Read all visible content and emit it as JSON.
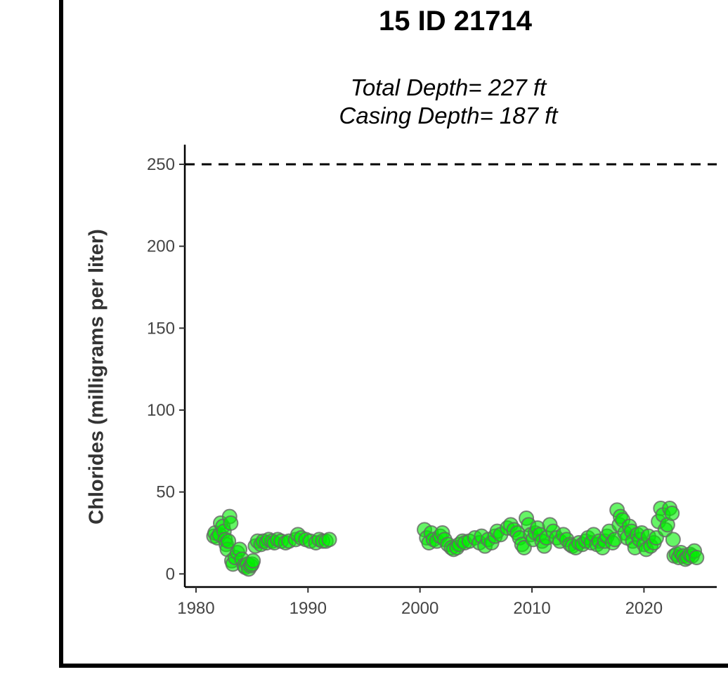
{
  "chart_data": {
    "type": "scatter",
    "title": "15 ID 21714",
    "subtitle_lines": [
      "Total Depth= 227 ft",
      "Casing Depth= 187 ft"
    ],
    "xlabel": "",
    "ylabel": "Chlorides (milligrams per liter)",
    "xlim": [
      1979,
      2026.5
    ],
    "ylim": [
      -8,
      262
    ],
    "x_ticks": [
      1980,
      1990,
      2000,
      2010,
      2020
    ],
    "y_ticks": [
      0,
      50,
      100,
      150,
      200,
      250
    ],
    "reference_line": {
      "y": 250,
      "style": "dashed",
      "color": "#000000"
    },
    "grid": false,
    "legend": "none",
    "point_color": "#00ee00",
    "point_edge_color": "#666666",
    "points": [
      [
        1981.6,
        23
      ],
      [
        1981.7,
        25
      ],
      [
        1981.9,
        22
      ],
      [
        1982.1,
        24
      ],
      [
        1982.2,
        31
      ],
      [
        1982.4,
        29
      ],
      [
        1982.5,
        26
      ],
      [
        1982.6,
        21
      ],
      [
        1982.7,
        18
      ],
      [
        1982.8,
        15
      ],
      [
        1982.9,
        20
      ],
      [
        1983.0,
        35
      ],
      [
        1983.1,
        31
      ],
      [
        1983.2,
        8
      ],
      [
        1983.3,
        6
      ],
      [
        1983.5,
        10
      ],
      [
        1983.7,
        13
      ],
      [
        1983.9,
        15
      ],
      [
        1984.1,
        9
      ],
      [
        1984.3,
        5
      ],
      [
        1984.4,
        4
      ],
      [
        1984.6,
        6
      ],
      [
        1984.7,
        3
      ],
      [
        1984.9,
        5
      ],
      [
        1985.0,
        6
      ],
      [
        1985.1,
        8
      ],
      [
        1985.3,
        17
      ],
      [
        1985.5,
        20
      ],
      [
        1985.8,
        18
      ],
      [
        1986.0,
        20
      ],
      [
        1986.3,
        19
      ],
      [
        1986.5,
        21
      ],
      [
        1986.8,
        20
      ],
      [
        1987.0,
        19
      ],
      [
        1987.3,
        21
      ],
      [
        1987.6,
        20
      ],
      [
        1988.0,
        19
      ],
      [
        1988.3,
        20
      ],
      [
        1988.9,
        21
      ],
      [
        1989.1,
        24
      ],
      [
        1989.4,
        22
      ],
      [
        1989.8,
        21
      ],
      [
        1990.2,
        20
      ],
      [
        1990.7,
        19
      ],
      [
        1991.0,
        21
      ],
      [
        1991.3,
        20
      ],
      [
        1991.6,
        20
      ],
      [
        1991.9,
        21
      ],
      [
        2000.4,
        27
      ],
      [
        2000.6,
        22
      ],
      [
        2000.8,
        19
      ],
      [
        2001.0,
        25
      ],
      [
        2001.2,
        21
      ],
      [
        2001.5,
        20
      ],
      [
        2001.8,
        23
      ],
      [
        2002.0,
        25
      ],
      [
        2002.2,
        21
      ],
      [
        2002.5,
        18
      ],
      [
        2002.8,
        16
      ],
      [
        2003.0,
        15
      ],
      [
        2003.3,
        16
      ],
      [
        2003.5,
        18
      ],
      [
        2003.8,
        20
      ],
      [
        2004.0,
        19
      ],
      [
        2004.4,
        20
      ],
      [
        2004.9,
        22
      ],
      [
        2005.3,
        19
      ],
      [
        2005.5,
        23
      ],
      [
        2005.8,
        17
      ],
      [
        2006.1,
        21
      ],
      [
        2006.4,
        19
      ],
      [
        2006.7,
        23
      ],
      [
        2006.9,
        26
      ],
      [
        2007.2,
        24
      ],
      [
        2007.8,
        28
      ],
      [
        2008.1,
        30
      ],
      [
        2008.4,
        27
      ],
      [
        2008.7,
        25
      ],
      [
        2008.9,
        22
      ],
      [
        2009.1,
        18
      ],
      [
        2009.3,
        16
      ],
      [
        2009.5,
        34
      ],
      [
        2009.7,
        30
      ],
      [
        2009.9,
        24
      ],
      [
        2010.1,
        21
      ],
      [
        2010.3,
        25
      ],
      [
        2010.5,
        28
      ],
      [
        2010.7,
        24
      ],
      [
        2010.9,
        20
      ],
      [
        2011.1,
        17
      ],
      [
        2011.3,
        22
      ],
      [
        2011.6,
        30
      ],
      [
        2011.9,
        26
      ],
      [
        2012.2,
        22
      ],
      [
        2012.5,
        20
      ],
      [
        2012.8,
        24
      ],
      [
        2013.1,
        21
      ],
      [
        2013.4,
        18
      ],
      [
        2013.6,
        17
      ],
      [
        2013.9,
        16
      ],
      [
        2014.2,
        19
      ],
      [
        2014.5,
        18
      ],
      [
        2014.8,
        20
      ],
      [
        2015.0,
        22
      ],
      [
        2015.3,
        19
      ],
      [
        2015.5,
        24
      ],
      [
        2015.8,
        18
      ],
      [
        2016.0,
        20
      ],
      [
        2016.3,
        16
      ],
      [
        2016.5,
        20
      ],
      [
        2016.7,
        23
      ],
      [
        2016.9,
        26
      ],
      [
        2017.2,
        19
      ],
      [
        2017.4,
        21
      ],
      [
        2017.6,
        39
      ],
      [
        2017.8,
        30
      ],
      [
        2017.9,
        35
      ],
      [
        2018.1,
        33
      ],
      [
        2018.3,
        25
      ],
      [
        2018.5,
        22
      ],
      [
        2018.7,
        29
      ],
      [
        2018.9,
        26
      ],
      [
        2019.0,
        20
      ],
      [
        2019.2,
        16
      ],
      [
        2019.4,
        24
      ],
      [
        2019.6,
        21
      ],
      [
        2019.8,
        25
      ],
      [
        2020.0,
        18
      ],
      [
        2020.2,
        15
      ],
      [
        2020.4,
        23
      ],
      [
        2020.6,
        17
      ],
      [
        2020.9,
        19
      ],
      [
        2021.1,
        22
      ],
      [
        2021.3,
        32
      ],
      [
        2021.5,
        40
      ],
      [
        2021.7,
        36
      ],
      [
        2021.9,
        27
      ],
      [
        2022.1,
        30
      ],
      [
        2022.3,
        40
      ],
      [
        2022.5,
        37
      ],
      [
        2022.6,
        21
      ],
      [
        2022.7,
        11
      ],
      [
        2022.9,
        12
      ],
      [
        2023.1,
        10
      ],
      [
        2023.3,
        13
      ],
      [
        2023.5,
        11
      ],
      [
        2023.7,
        9
      ],
      [
        2023.9,
        10
      ],
      [
        2024.1,
        12
      ],
      [
        2024.3,
        11
      ],
      [
        2024.5,
        14
      ],
      [
        2024.7,
        10
      ]
    ]
  }
}
